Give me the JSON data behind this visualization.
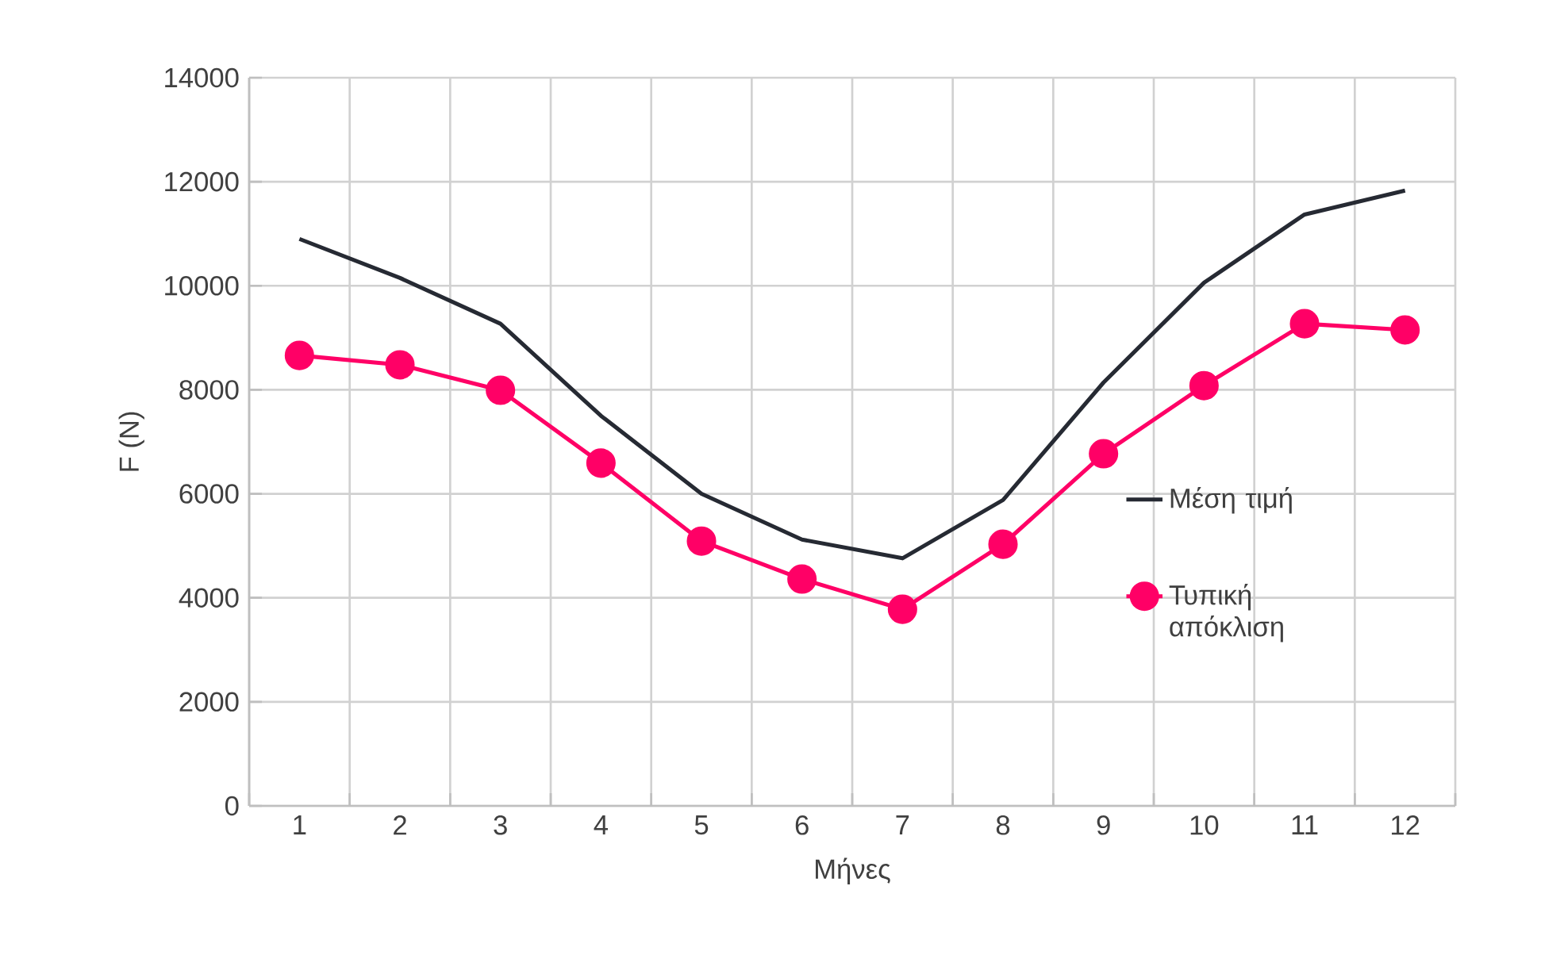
{
  "chart_data": {
    "type": "line",
    "xlabel": "Μήνες",
    "ylabel": "F (N)",
    "categories": [
      "1",
      "2",
      "3",
      "4",
      "5",
      "6",
      "7",
      "8",
      "9",
      "10",
      "11",
      "12"
    ],
    "series": [
      {
        "name": "Μέση τιμή",
        "color": "#262a33",
        "marker": "none",
        "values": [
          10900,
          10150,
          9270,
          7500,
          6000,
          5120,
          4760,
          5880,
          8140,
          10060,
          11370,
          11830
        ]
      },
      {
        "name": "Τυπική απόκλιση",
        "color": "#ff0066",
        "marker": "circle",
        "values": [
          8660,
          8480,
          7990,
          6590,
          5090,
          4360,
          3780,
          5030,
          6770,
          8080,
          9270,
          9150
        ]
      }
    ],
    "ylim": [
      0,
      14000
    ],
    "yticks": [
      0,
      2000,
      4000,
      6000,
      8000,
      10000,
      12000,
      14000
    ],
    "grid": true,
    "legend": "right"
  }
}
